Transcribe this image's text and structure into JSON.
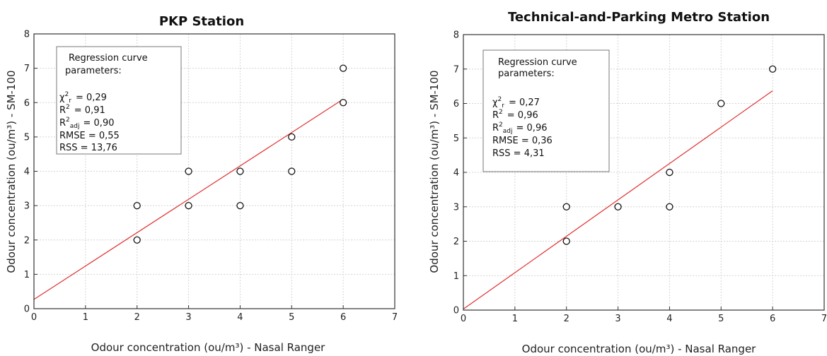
{
  "chart_data": [
    {
      "type": "scatter",
      "title": "PKP Station",
      "xlabel": "Odour concentration (ou/m³) - Nasal Ranger",
      "ylabel": "Odour concentration (ou/m³) - SM-100",
      "xlim": [
        0,
        7
      ],
      "ylim": [
        0,
        8
      ],
      "xticks": [
        "0",
        "1",
        "2",
        "3",
        "4",
        "5",
        "6",
        "7"
      ],
      "yticks": [
        "0",
        "1",
        "2",
        "3",
        "4",
        "5",
        "6",
        "7",
        "8"
      ],
      "grid": true,
      "points": [
        {
          "x": 2,
          "y": 3
        },
        {
          "x": 2,
          "y": 2
        },
        {
          "x": 3,
          "y": 4
        },
        {
          "x": 3,
          "y": 3
        },
        {
          "x": 4,
          "y": 4
        },
        {
          "x": 4,
          "y": 3
        },
        {
          "x": 5,
          "y": 5
        },
        {
          "x": 5,
          "y": 4
        },
        {
          "x": 6,
          "y": 7
        },
        {
          "x": 6,
          "y": 6
        }
      ],
      "regression": {
        "x": [
          0,
          6
        ],
        "y": [
          0.27,
          6.1
        ],
        "color": "#e03030"
      },
      "box": {
        "header1": "Regression curve",
        "header2": "parameters:",
        "chi": "= 0,29",
        "r2": "= 0,91",
        "r2adj": "= 0,90",
        "rmse": "RMSE  =  0,55",
        "rss": "RSS  =  13,76"
      }
    },
    {
      "type": "scatter",
      "title": "Technical-and-Parking Metro Station",
      "xlabel": "Odour concentration (ou/m³) - Nasal Ranger",
      "ylabel": "Odour concentration (ou/m³) - SM-100",
      "xlim": [
        0,
        7
      ],
      "ylim": [
        0,
        8
      ],
      "xticks": [
        "0",
        "1",
        "2",
        "3",
        "4",
        "5",
        "6",
        "7"
      ],
      "yticks": [
        "0",
        "1",
        "2",
        "3",
        "4",
        "5",
        "6",
        "7",
        "8"
      ],
      "grid": true,
      "points": [
        {
          "x": 2,
          "y": 3
        },
        {
          "x": 2,
          "y": 2
        },
        {
          "x": 3,
          "y": 3
        },
        {
          "x": 4,
          "y": 4
        },
        {
          "x": 4,
          "y": 3
        },
        {
          "x": 5,
          "y": 6
        },
        {
          "x": 6,
          "y": 7
        }
      ],
      "regression": {
        "x": [
          0,
          6
        ],
        "y": [
          0.03,
          6.37
        ],
        "color": "#e03030"
      },
      "box": {
        "header1": "Regression curve",
        "header2": "parameters:",
        "chi": "= 0,27",
        "r2": "= 0,96",
        "r2adj": "= 0,96",
        "rmse": "RMSE  =  0,36",
        "rss": "RSS  =  4,31"
      }
    }
  ],
  "symbols": {
    "chi": "χ",
    "r": "R",
    "sup2": "2",
    "sub_r": "r",
    "sub_adj": "adj"
  }
}
